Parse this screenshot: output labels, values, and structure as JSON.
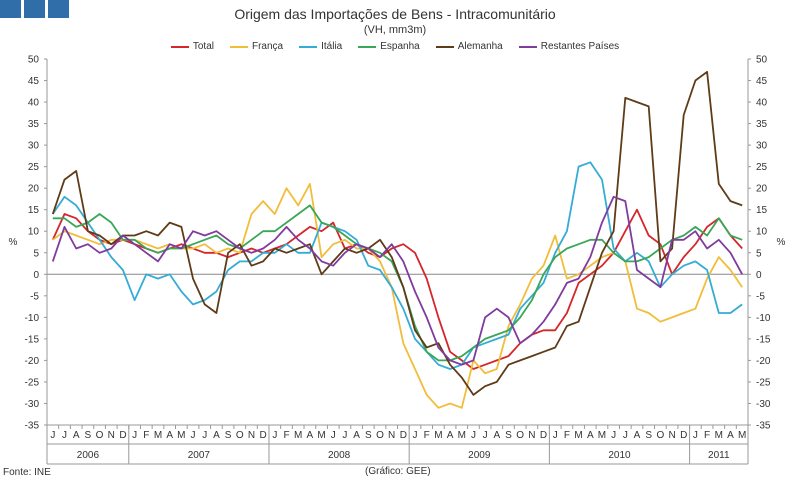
{
  "header": {
    "title": "Origem das Importações de Bens - Intracomunitário",
    "subtitle": "(VH, mm3m)"
  },
  "footer": {
    "source": "Fonte: INE",
    "credit": "(Gráfico: GEE)"
  },
  "chart_data": {
    "type": "line",
    "ylabel_left": "%",
    "ylabel_right": "%",
    "ylim": [
      -35,
      50
    ],
    "yticks": [
      50,
      45,
      40,
      35,
      30,
      25,
      20,
      15,
      10,
      5,
      0,
      -5,
      -10,
      -15,
      -20,
      -25,
      -30,
      -35
    ],
    "month_letters": [
      "J",
      "J",
      "A",
      "S",
      "O",
      "N",
      "D",
      "J",
      "F",
      "M",
      "A",
      "M",
      "J",
      "J",
      "A",
      "S",
      "O",
      "N",
      "D",
      "J",
      "F",
      "M",
      "A",
      "M",
      "J",
      "J",
      "A",
      "S",
      "O",
      "N",
      "D",
      "J",
      "F",
      "M",
      "A",
      "M",
      "J",
      "J",
      "A",
      "S",
      "O",
      "N",
      "D",
      "J",
      "F",
      "M",
      "A",
      "M",
      "J",
      "J",
      "A",
      "S",
      "O",
      "N",
      "D",
      "J",
      "F",
      "M",
      "A",
      "M"
    ],
    "years": [
      {
        "label": "2006",
        "start": 0,
        "end": 7
      },
      {
        "label": "2007",
        "start": 7,
        "end": 19
      },
      {
        "label": "2008",
        "start": 19,
        "end": 31
      },
      {
        "label": "2009",
        "start": 31,
        "end": 43
      },
      {
        "label": "2010",
        "start": 43,
        "end": 55
      },
      {
        "label": "2011",
        "start": 55,
        "end": 60
      }
    ],
    "grid": false,
    "legend_position": "top",
    "series": [
      {
        "name": "Total",
        "color": "#d4262b",
        "values": [
          8,
          14,
          13,
          10,
          8,
          7,
          8,
          7,
          6,
          5,
          6,
          7,
          6,
          5,
          5,
          4,
          5,
          6,
          5,
          6,
          7,
          9,
          11,
          10,
          12,
          6,
          7,
          5,
          4,
          6,
          7,
          5,
          -1,
          -10,
          -18,
          -20,
          -22,
          -21,
          -20,
          -19,
          -16,
          -14,
          -13,
          -13,
          -9,
          -2,
          0,
          2,
          5,
          10,
          15,
          9,
          7,
          0,
          4,
          7,
          11,
          13,
          9,
          6
        ]
      },
      {
        "name": "França",
        "color": "#f1bd3a",
        "values": [
          8,
          10,
          9,
          8,
          7,
          8,
          8,
          8,
          7,
          6,
          7,
          6,
          6,
          7,
          5,
          6,
          5,
          14,
          17,
          14,
          20,
          16,
          21,
          4,
          7,
          8,
          6,
          6,
          3,
          -3,
          -16,
          -22,
          -28,
          -31,
          -30,
          -31,
          -20,
          -23,
          -22,
          -12,
          -7,
          -1,
          2,
          9,
          -1,
          0,
          2,
          4,
          5,
          3,
          -8,
          -9,
          -11,
          -10,
          -9,
          -8,
          -1,
          4,
          1,
          -3
        ]
      },
      {
        "name": "Itália",
        "color": "#35acd5",
        "values": [
          14,
          18,
          16,
          12,
          8,
          4,
          1,
          -6,
          0,
          -1,
          0,
          -4,
          -7,
          -6,
          -4,
          1,
          3,
          3,
          5,
          5,
          7,
          5,
          5,
          12,
          11,
          10,
          8,
          2,
          1,
          -3,
          -8,
          -15,
          -18,
          -21,
          -22,
          -21,
          -17,
          -16,
          -15,
          -14,
          -8,
          -5,
          -2,
          5,
          10,
          25,
          26,
          22,
          6,
          3,
          5,
          3,
          -3,
          0,
          2,
          3,
          1,
          -9,
          -9,
          -7
        ]
      },
      {
        "name": "Espanha",
        "color": "#3aa657",
        "values": [
          13,
          13,
          11,
          12,
          14,
          12,
          8,
          8,
          6,
          5,
          6,
          6,
          7,
          8,
          9,
          7,
          6,
          8,
          10,
          10,
          12,
          14,
          16,
          12,
          11,
          9,
          7,
          6,
          5,
          3,
          -3,
          -12,
          -18,
          -20,
          -20,
          -19,
          -17,
          -15,
          -14,
          -13,
          -10,
          -6,
          0,
          4,
          6,
          7,
          8,
          8,
          5,
          3,
          3,
          4,
          6,
          8,
          9,
          11,
          9,
          13,
          9,
          8
        ]
      },
      {
        "name": "Alemanha",
        "color": "#5f3b17",
        "values": [
          14,
          22,
          24,
          10,
          9,
          7,
          9,
          9,
          10,
          9,
          12,
          11,
          -1,
          -7,
          -9,
          5,
          7,
          2,
          3,
          6,
          5,
          6,
          7,
          0,
          3,
          6,
          5,
          6,
          8,
          4,
          -3,
          -13,
          -17,
          -16,
          -21,
          -24,
          -28,
          -26,
          -25,
          -21,
          -20,
          -19,
          -18,
          -17,
          -12,
          -11,
          -3,
          5,
          10,
          41,
          40,
          39,
          3,
          6,
          37,
          45,
          47,
          21,
          17,
          16
        ]
      },
      {
        "name": "Restantes Países",
        "color": "#7f3b9d",
        "values": [
          3,
          11,
          6,
          7,
          5,
          6,
          9,
          7,
          5,
          3,
          7,
          6,
          10,
          9,
          10,
          8,
          6,
          5,
          6,
          8,
          11,
          8,
          6,
          3,
          2,
          5,
          7,
          6,
          4,
          7,
          3,
          -4,
          -10,
          -17,
          -20,
          -21,
          -20,
          -10,
          -8,
          -10,
          -16,
          -14,
          -11,
          -7,
          -2,
          -1,
          4,
          12,
          18,
          17,
          1,
          -1,
          -3,
          8,
          8,
          10,
          6,
          8,
          5,
          0
        ]
      }
    ]
  }
}
